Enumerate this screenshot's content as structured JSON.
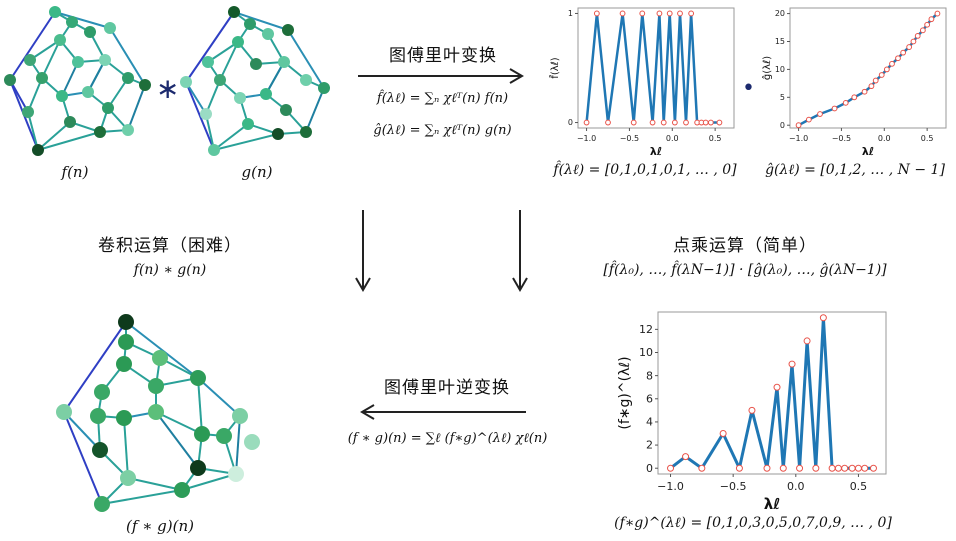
{
  "captions": {
    "f_graph": "f(n)",
    "g_graph": "g(n)",
    "result_graph": "(f ∗ g)(n)"
  },
  "operators": {
    "convolve": "∗",
    "dot": "•"
  },
  "top_transform": {
    "title": "图傅里叶变换",
    "eq_f": "f̂(λℓ) = ∑ₙ χℓᵀ(n) f(n)",
    "eq_g": "ĝ(λℓ) = ∑ₙ χℓᵀ(n) g(n)"
  },
  "left_middle": {
    "title": "卷积运算（困难）",
    "expr": "f(n) ∗ g(n)"
  },
  "right_middle": {
    "title": "点乘运算（简单）",
    "expr": "[f̂(λ₀), …, f̂(λN−1)] · [ĝ(λ₀), …, ĝ(λN−1)]"
  },
  "bottom_transform": {
    "title": "图傅里叶逆变换",
    "eq": "(f ∗ g)(n) = ∑ℓ (f∗g)^(λℓ) χℓ(n)"
  },
  "plot_captions": {
    "f_hat": "f̂(λℓ) = [0,1,0,1,0,1, … , 0]",
    "g_hat": "ĝ(λℓ) = [0,1,2, … , N − 1]",
    "fg_hat": "(f∗g)^(λℓ) = [0,1,0,3,0,5,0,7,0,9, … , 0]"
  },
  "colors": {
    "line": "#1f77b4",
    "marker": "#e8534a",
    "edge_blue": "#2f3fc4",
    "edge_teal": "#2aa198"
  },
  "chart_data": [
    {
      "type": "line",
      "id": "f_hat",
      "xlabel": "λℓ",
      "ylabel": "f̂(λℓ)",
      "xlim": [
        -1.1,
        0.72
      ],
      "ylim": [
        -0.05,
        1.05
      ],
      "xticks": [
        -1.0,
        -0.5,
        0.0,
        0.5
      ],
      "xtick_labels": [
        "−1.0",
        "−0.5",
        "0.0",
        "0.5"
      ],
      "yticks": [
        0,
        1
      ],
      "ytick_labels": [
        "0",
        "1"
      ],
      "x": [
        -1.0,
        -0.88,
        -0.75,
        -0.58,
        -0.45,
        -0.35,
        -0.23,
        -0.15,
        -0.1,
        -0.03,
        0.03,
        0.09,
        0.16,
        0.22,
        0.29,
        0.34,
        0.39,
        0.45,
        0.55
      ],
      "y": [
        0,
        1,
        0,
        1,
        0,
        1,
        0,
        1,
        0,
        1,
        0,
        1,
        0,
        1,
        0,
        0,
        0,
        0,
        0
      ]
    },
    {
      "type": "line",
      "id": "g_hat",
      "xlabel": "λℓ",
      "ylabel": "ĝ(λℓ)",
      "xlim": [
        -1.1,
        0.72
      ],
      "ylim": [
        -0.5,
        21
      ],
      "xticks": [
        -1.0,
        -0.5,
        0.0,
        0.5
      ],
      "xtick_labels": [
        "−1.0",
        "−0.5",
        "0.0",
        "0.5"
      ],
      "yticks": [
        0,
        5,
        10,
        15,
        20
      ],
      "ytick_labels": [
        "0",
        "5",
        "10",
        "15",
        "20"
      ],
      "x": [
        -1.0,
        -0.88,
        -0.75,
        -0.58,
        -0.45,
        -0.35,
        -0.23,
        -0.15,
        -0.1,
        -0.03,
        0.03,
        0.09,
        0.16,
        0.22,
        0.29,
        0.34,
        0.39,
        0.45,
        0.5,
        0.55,
        0.62
      ],
      "y": [
        0,
        1,
        2,
        3,
        4,
        5,
        6,
        7,
        8,
        9,
        10,
        11,
        12,
        13,
        14,
        15,
        16,
        17,
        18,
        19,
        20
      ]
    },
    {
      "type": "line",
      "id": "fg_hat",
      "xlabel": "λℓ",
      "ylabel": "(f∗g)^(λℓ)",
      "xlim": [
        -1.1,
        0.72
      ],
      "ylim": [
        -0.5,
        13.5
      ],
      "xticks": [
        -1.0,
        -0.5,
        0.0,
        0.5
      ],
      "xtick_labels": [
        "−1.0",
        "−0.5",
        "0.0",
        "0.5"
      ],
      "yticks": [
        0,
        2,
        4,
        6,
        8,
        10,
        12
      ],
      "ytick_labels": [
        "0",
        "2",
        "4",
        "6",
        "8",
        "10",
        "12"
      ],
      "x": [
        -1.0,
        -0.88,
        -0.75,
        -0.58,
        -0.45,
        -0.35,
        -0.23,
        -0.15,
        -0.1,
        -0.03,
        0.03,
        0.09,
        0.16,
        0.22,
        0.29,
        0.34,
        0.39,
        0.45,
        0.5,
        0.55,
        0.62
      ],
      "y": [
        0,
        1,
        0,
        3,
        0,
        5,
        0,
        7,
        0,
        9,
        0,
        11,
        0,
        13,
        0,
        0,
        0,
        0,
        0,
        0,
        0
      ]
    }
  ]
}
